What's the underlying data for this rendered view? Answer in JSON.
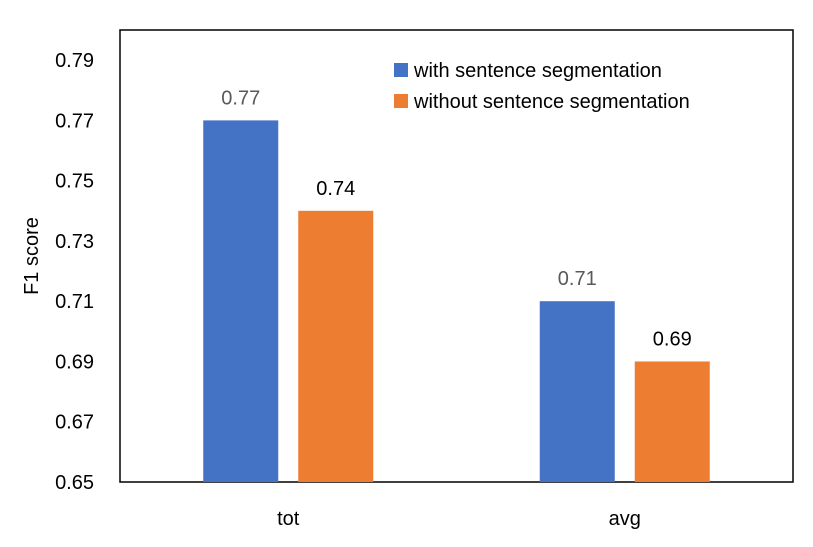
{
  "chart_data": {
    "type": "bar",
    "title": "",
    "xlabel": "",
    "ylabel": "F1 score",
    "categories": [
      "tot",
      "avg"
    ],
    "series": [
      {
        "name": "with sentence segmentation",
        "values": [
          0.77,
          0.71
        ],
        "labels": [
          "0.77",
          "0.71"
        ],
        "color": "#4472C4",
        "label_color": "#595959"
      },
      {
        "name": "without sentence segmentation",
        "values": [
          0.74,
          0.69
        ],
        "labels": [
          "0.74",
          "0.69"
        ],
        "color": "#ED7D31",
        "label_color": "#000000"
      }
    ],
    "ylim": [
      0.65,
      0.8
    ],
    "yticks": [
      "0.65",
      "0.67",
      "0.69",
      "0.71",
      "0.73",
      "0.75",
      "0.77",
      "0.79"
    ],
    "grid": false,
    "legend_position": "top-right"
  }
}
